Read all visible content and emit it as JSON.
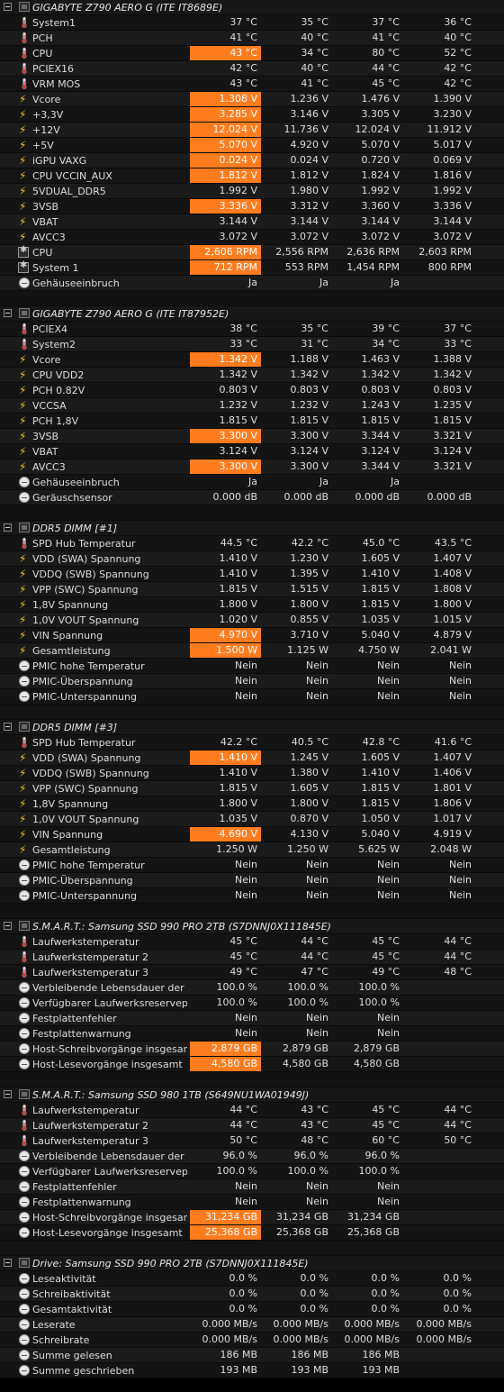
{
  "sections": [
    {
      "title": "GIGABYTE Z790 AERO G (ITE IT8689E)",
      "rows": [
        {
          "icon": "thermometer",
          "label": "System1",
          "v": [
            "37 °C",
            "35 °C",
            "37 °C",
            "36 °C"
          ],
          "hl": false
        },
        {
          "icon": "thermometer",
          "label": "PCH",
          "v": [
            "41 °C",
            "40 °C",
            "41 °C",
            "40 °C"
          ],
          "hl": false
        },
        {
          "icon": "thermometer",
          "label": "CPU",
          "v": [
            "43 °C",
            "34 °C",
            "80 °C",
            "52 °C"
          ],
          "hl": true
        },
        {
          "icon": "thermometer",
          "label": "PCIEX16",
          "v": [
            "42 °C",
            "40 °C",
            "44 °C",
            "42 °C"
          ],
          "hl": false
        },
        {
          "icon": "thermometer",
          "label": "VRM MOS",
          "v": [
            "43 °C",
            "41 °C",
            "45 °C",
            "42 °C"
          ],
          "hl": false
        },
        {
          "icon": "bolt",
          "label": "Vcore",
          "v": [
            "1.308 V",
            "1.236 V",
            "1.476 V",
            "1.390 V"
          ],
          "hl": true
        },
        {
          "icon": "bolt",
          "label": "+3,3V",
          "v": [
            "3.285 V",
            "3.146 V",
            "3.305 V",
            "3.230 V"
          ],
          "hl": true
        },
        {
          "icon": "bolt",
          "label": "+12V",
          "v": [
            "12.024 V",
            "11.736 V",
            "12.024 V",
            "11.912 V"
          ],
          "hl": true
        },
        {
          "icon": "bolt",
          "label": "+5V",
          "v": [
            "5.070 V",
            "4.920 V",
            "5.070 V",
            "5.017 V"
          ],
          "hl": true
        },
        {
          "icon": "bolt",
          "label": "iGPU VAXG",
          "v": [
            "0.024 V",
            "0.024 V",
            "0.720 V",
            "0.069 V"
          ],
          "hl": true
        },
        {
          "icon": "bolt",
          "label": "CPU VCCIN_AUX",
          "v": [
            "1.812 V",
            "1.812 V",
            "1.824 V",
            "1.816 V"
          ],
          "hl": true
        },
        {
          "icon": "bolt",
          "label": "5VDUAL_DDR5",
          "v": [
            "1.992 V",
            "1.980 V",
            "1.992 V",
            "1.992 V"
          ],
          "hl": false
        },
        {
          "icon": "bolt",
          "label": "3VSB",
          "v": [
            "3.336 V",
            "3.312 V",
            "3.360 V",
            "3.336 V"
          ],
          "hl": true
        },
        {
          "icon": "bolt",
          "label": "VBAT",
          "v": [
            "3.144 V",
            "3.144 V",
            "3.144 V",
            "3.144 V"
          ],
          "hl": false
        },
        {
          "icon": "bolt",
          "label": "AVCC3",
          "v": [
            "3.072 V",
            "3.072 V",
            "3.072 V",
            "3.072 V"
          ],
          "hl": false
        },
        {
          "icon": "fan",
          "label": "CPU",
          "v": [
            "2,606 RPM",
            "2,556 RPM",
            "2,636 RPM",
            "2,603 RPM"
          ],
          "hl": true
        },
        {
          "icon": "fan",
          "label": "System 1",
          "v": [
            "712 RPM",
            "553 RPM",
            "1,454 RPM",
            "800 RPM"
          ],
          "hl": true
        },
        {
          "icon": "gauge",
          "label": "Gehäuseeinbruch",
          "v": [
            "Ja",
            "Ja",
            "Ja",
            ""
          ],
          "hl": false
        }
      ]
    },
    {
      "title": "GIGABYTE Z790 AERO G (ITE IT87952E)",
      "rows": [
        {
          "icon": "thermometer",
          "label": "PCIEX4",
          "v": [
            "38 °C",
            "35 °C",
            "39 °C",
            "37 °C"
          ],
          "hl": false
        },
        {
          "icon": "thermometer",
          "label": "System2",
          "v": [
            "33 °C",
            "31 °C",
            "34 °C",
            "33 °C"
          ],
          "hl": false
        },
        {
          "icon": "bolt",
          "label": "Vcore",
          "v": [
            "1.342 V",
            "1.188 V",
            "1.463 V",
            "1.388 V"
          ],
          "hl": true
        },
        {
          "icon": "bolt",
          "label": "CPU VDD2",
          "v": [
            "1.342 V",
            "1.342 V",
            "1.342 V",
            "1.342 V"
          ],
          "hl": false
        },
        {
          "icon": "bolt",
          "label": "PCH 0.82V",
          "v": [
            "0.803 V",
            "0.803 V",
            "0.803 V",
            "0.803 V"
          ],
          "hl": false
        },
        {
          "icon": "bolt",
          "label": "VCCSA",
          "v": [
            "1.232 V",
            "1.232 V",
            "1.243 V",
            "1.235 V"
          ],
          "hl": false
        },
        {
          "icon": "bolt",
          "label": "PCH 1,8V",
          "v": [
            "1.815 V",
            "1.815 V",
            "1.815 V",
            "1.815 V"
          ],
          "hl": false
        },
        {
          "icon": "bolt",
          "label": "3VSB",
          "v": [
            "3.300 V",
            "3.300 V",
            "3.344 V",
            "3.321 V"
          ],
          "hl": true
        },
        {
          "icon": "bolt",
          "label": "VBAT",
          "v": [
            "3.124 V",
            "3.124 V",
            "3.124 V",
            "3.124 V"
          ],
          "hl": false
        },
        {
          "icon": "bolt",
          "label": "AVCC3",
          "v": [
            "3.300 V",
            "3.300 V",
            "3.344 V",
            "3.321 V"
          ],
          "hl": true
        },
        {
          "icon": "gauge",
          "label": "Gehäuseeinbruch",
          "v": [
            "Ja",
            "Ja",
            "Ja",
            ""
          ],
          "hl": false
        },
        {
          "icon": "gauge",
          "label": "Geräuschsensor",
          "v": [
            "0.000 dB",
            "0.000 dB",
            "0.000 dB",
            "0.000 dB"
          ],
          "hl": false
        }
      ]
    },
    {
      "title": "DDR5 DIMM [#1]",
      "rows": [
        {
          "icon": "thermometer",
          "label": "SPD Hub Temperatur",
          "v": [
            "44.5 °C",
            "42.2 °C",
            "45.0 °C",
            "43.5 °C"
          ],
          "hl": false
        },
        {
          "icon": "bolt",
          "label": "VDD (SWA) Spannung",
          "v": [
            "1.410 V",
            "1.230 V",
            "1.605 V",
            "1.407 V"
          ],
          "hl": false
        },
        {
          "icon": "bolt",
          "label": "VDDQ (SWB) Spannung",
          "v": [
            "1.410 V",
            "1.395 V",
            "1.410 V",
            "1.408 V"
          ],
          "hl": false
        },
        {
          "icon": "bolt",
          "label": "VPP (SWC) Spannung",
          "v": [
            "1.815 V",
            "1.515 V",
            "1.815 V",
            "1.808 V"
          ],
          "hl": false
        },
        {
          "icon": "bolt",
          "label": "1,8V Spannung",
          "v": [
            "1.800 V",
            "1.800 V",
            "1.815 V",
            "1.800 V"
          ],
          "hl": false
        },
        {
          "icon": "bolt",
          "label": "1,0V VOUT Spannung",
          "v": [
            "1.020 V",
            "0.855 V",
            "1.035 V",
            "1.015 V"
          ],
          "hl": false
        },
        {
          "icon": "bolt",
          "label": "VIN Spannung",
          "v": [
            "4.970 V",
            "3.710 V",
            "5.040 V",
            "4.879 V"
          ],
          "hl": true
        },
        {
          "icon": "bolt",
          "label": "Gesamtleistung",
          "v": [
            "1.500 W",
            "1.125 W",
            "4.750 W",
            "2.041 W"
          ],
          "hl": true
        },
        {
          "icon": "gauge",
          "label": "PMIC hohe Temperatur",
          "v": [
            "Nein",
            "Nein",
            "Nein",
            "Nein"
          ],
          "hl": false
        },
        {
          "icon": "gauge",
          "label": "PMIC-Überspannung",
          "v": [
            "Nein",
            "Nein",
            "Nein",
            "Nein"
          ],
          "hl": false
        },
        {
          "icon": "gauge",
          "label": "PMIC-Unterspannung",
          "v": [
            "Nein",
            "Nein",
            "Nein",
            "Nein"
          ],
          "hl": false
        }
      ]
    },
    {
      "title": "DDR5 DIMM [#3]",
      "rows": [
        {
          "icon": "thermometer",
          "label": "SPD Hub Temperatur",
          "v": [
            "42.2 °C",
            "40.5 °C",
            "42.8 °C",
            "41.6 °C"
          ],
          "hl": false
        },
        {
          "icon": "bolt",
          "label": "VDD (SWA) Spannung",
          "v": [
            "1.410 V",
            "1.245 V",
            "1.605 V",
            "1.407 V"
          ],
          "hl": true
        },
        {
          "icon": "bolt",
          "label": "VDDQ (SWB) Spannung",
          "v": [
            "1.410 V",
            "1.380 V",
            "1.410 V",
            "1.406 V"
          ],
          "hl": false
        },
        {
          "icon": "bolt",
          "label": "VPP (SWC) Spannung",
          "v": [
            "1.815 V",
            "1.605 V",
            "1.815 V",
            "1.801 V"
          ],
          "hl": false
        },
        {
          "icon": "bolt",
          "label": "1,8V Spannung",
          "v": [
            "1.800 V",
            "1.800 V",
            "1.815 V",
            "1.806 V"
          ],
          "hl": false
        },
        {
          "icon": "bolt",
          "label": "1,0V VOUT Spannung",
          "v": [
            "1.035 V",
            "0.870 V",
            "1.050 V",
            "1.017 V"
          ],
          "hl": false
        },
        {
          "icon": "bolt",
          "label": "VIN Spannung",
          "v": [
            "4.690 V",
            "4.130 V",
            "5.040 V",
            "4.919 V"
          ],
          "hl": true
        },
        {
          "icon": "bolt",
          "label": "Gesamtleistung",
          "v": [
            "1.250 W",
            "1.250 W",
            "5.625 W",
            "2.048 W"
          ],
          "hl": false
        },
        {
          "icon": "gauge",
          "label": "PMIC hohe Temperatur",
          "v": [
            "Nein",
            "Nein",
            "Nein",
            "Nein"
          ],
          "hl": false
        },
        {
          "icon": "gauge",
          "label": "PMIC-Überspannung",
          "v": [
            "Nein",
            "Nein",
            "Nein",
            "Nein"
          ],
          "hl": false
        },
        {
          "icon": "gauge",
          "label": "PMIC-Unterspannung",
          "v": [
            "Nein",
            "Nein",
            "Nein",
            "Nein"
          ],
          "hl": false
        }
      ]
    },
    {
      "title": "S.M.A.R.T.: Samsung SSD 990 PRO 2TB (S7DNNJ0X111845E)",
      "rows": [
        {
          "icon": "thermometer",
          "label": "Laufwerkstemperatur",
          "v": [
            "45 °C",
            "44 °C",
            "45 °C",
            "44 °C"
          ],
          "hl": false
        },
        {
          "icon": "thermometer",
          "label": "Laufwerkstemperatur 2",
          "v": [
            "45 °C",
            "44 °C",
            "45 °C",
            "44 °C"
          ],
          "hl": false
        },
        {
          "icon": "thermometer",
          "label": "Laufwerkstemperatur 3",
          "v": [
            "49 °C",
            "47 °C",
            "49 °C",
            "48 °C"
          ],
          "hl": false
        },
        {
          "icon": "gauge",
          "label": "Verbleibende Lebensdauer der F...",
          "v": [
            "100.0 %",
            "100.0 %",
            "100.0 %",
            ""
          ],
          "hl": false
        },
        {
          "icon": "gauge",
          "label": "Verfügbarer Laufwerksreserveplatz",
          "v": [
            "100.0 %",
            "100.0 %",
            "100.0 %",
            ""
          ],
          "hl": false
        },
        {
          "icon": "gauge",
          "label": "Festplattenfehler",
          "v": [
            "Nein",
            "Nein",
            "Nein",
            ""
          ],
          "hl": false
        },
        {
          "icon": "gauge",
          "label": "Festplattenwarnung",
          "v": [
            "Nein",
            "Nein",
            "Nein",
            ""
          ],
          "hl": false
        },
        {
          "icon": "gauge",
          "label": "Host-Schreibvorgänge insgesamt",
          "v": [
            "2,879 GB",
            "2,879 GB",
            "2,879 GB",
            ""
          ],
          "hl": true
        },
        {
          "icon": "gauge",
          "label": "Host-Lesevorgänge insgesamt",
          "v": [
            "4,580 GB",
            "4,580 GB",
            "4,580 GB",
            ""
          ],
          "hl": true
        }
      ]
    },
    {
      "title": "S.M.A.R.T.: Samsung SSD 980 1TB (S649NU1WA01949J)",
      "rows": [
        {
          "icon": "thermometer",
          "label": "Laufwerkstemperatur",
          "v": [
            "44 °C",
            "43 °C",
            "45 °C",
            "44 °C"
          ],
          "hl": false
        },
        {
          "icon": "thermometer",
          "label": "Laufwerkstemperatur 2",
          "v": [
            "44 °C",
            "43 °C",
            "45 °C",
            "44 °C"
          ],
          "hl": false
        },
        {
          "icon": "thermometer",
          "label": "Laufwerkstemperatur 3",
          "v": [
            "50 °C",
            "48 °C",
            "60 °C",
            "50 °C"
          ],
          "hl": false
        },
        {
          "icon": "gauge",
          "label": "Verbleibende Lebensdauer der F...",
          "v": [
            "96.0 %",
            "96.0 %",
            "96.0 %",
            ""
          ],
          "hl": false
        },
        {
          "icon": "gauge",
          "label": "Verfügbarer Laufwerksreserveplatz",
          "v": [
            "100.0 %",
            "100.0 %",
            "100.0 %",
            ""
          ],
          "hl": false
        },
        {
          "icon": "gauge",
          "label": "Festplattenfehler",
          "v": [
            "Nein",
            "Nein",
            "Nein",
            ""
          ],
          "hl": false
        },
        {
          "icon": "gauge",
          "label": "Festplattenwarnung",
          "v": [
            "Nein",
            "Nein",
            "Nein",
            ""
          ],
          "hl": false
        },
        {
          "icon": "gauge",
          "label": "Host-Schreibvorgänge insgesamt",
          "v": [
            "31,234 GB",
            "31,234 GB",
            "31,234 GB",
            ""
          ],
          "hl": true
        },
        {
          "icon": "gauge",
          "label": "Host-Lesevorgänge insgesamt",
          "v": [
            "25,368 GB",
            "25,368 GB",
            "25,368 GB",
            ""
          ],
          "hl": true
        }
      ]
    },
    {
      "title": "Drive: Samsung SSD 990 PRO 2TB (S7DNNJ0X111845E)",
      "rows": [
        {
          "icon": "gauge",
          "label": "Leseaktivität",
          "v": [
            "0.0 %",
            "0.0 %",
            "0.0 %",
            "0.0 %"
          ],
          "hl": false
        },
        {
          "icon": "gauge",
          "label": "Schreibaktivität",
          "v": [
            "0.0 %",
            "0.0 %",
            "0.0 %",
            "0.0 %"
          ],
          "hl": false
        },
        {
          "icon": "gauge",
          "label": "Gesamtaktivität",
          "v": [
            "0.0 %",
            "0.0 %",
            "0.0 %",
            "0.0 %"
          ],
          "hl": false
        },
        {
          "icon": "gauge",
          "label": "Leserate",
          "v": [
            "0.000 MB/s",
            "0.000 MB/s",
            "0.000 MB/s",
            "0.000 MB/s"
          ],
          "hl": false
        },
        {
          "icon": "gauge",
          "label": "Schreibrate",
          "v": [
            "0.000 MB/s",
            "0.000 MB/s",
            "0.000 MB/s",
            "0.000 MB/s"
          ],
          "hl": false
        },
        {
          "icon": "gauge",
          "label": "Summe gelesen",
          "v": [
            "186 MB",
            "186 MB",
            "186 MB",
            ""
          ],
          "hl": false
        },
        {
          "icon": "gauge",
          "label": "Summe geschrieben",
          "v": [
            "193 MB",
            "193 MB",
            "193 MB",
            ""
          ],
          "hl": false
        }
      ]
    }
  ],
  "colors": {
    "highlight": "#ff7c1f",
    "bolt": "#f4c21b",
    "thermometer": "#d23a3a"
  }
}
